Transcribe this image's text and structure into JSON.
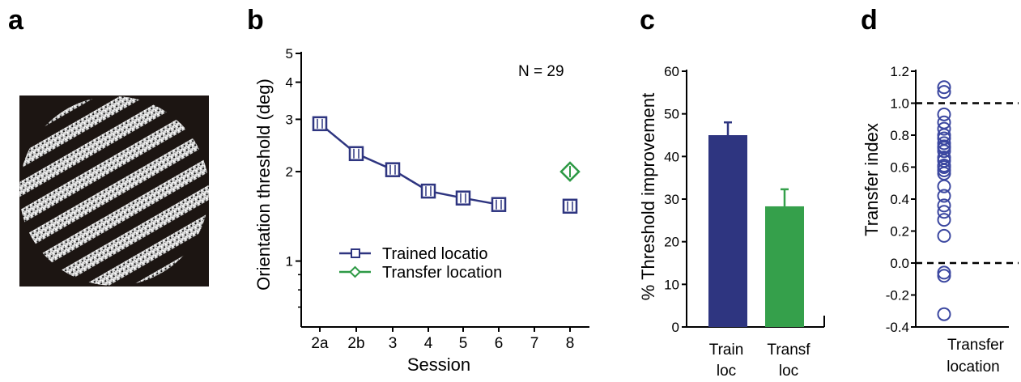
{
  "panels": {
    "a": "a",
    "b": "b",
    "c": "c",
    "d": "d"
  },
  "colors": {
    "trained": "#2e3580",
    "transfer": "#2e9a46",
    "bar_train": "#2e3580",
    "bar_transfer": "#35a04b",
    "points_d": "#3b47a0"
  },
  "stimulus": {
    "description_icon": "grating-stimulus-icon",
    "orientation_deg": 30,
    "stripe_count": 9
  },
  "chart_data": [
    {
      "panel": "b",
      "type": "line",
      "ylabel": "Orientation threshold (deg)",
      "xlabel": "Session",
      "yscale": "log",
      "ylim": [
        0.6,
        5
      ],
      "yticks": [
        "1",
        "2",
        "3",
        "4",
        "5"
      ],
      "yticks_values": [
        1,
        2,
        3,
        4,
        5
      ],
      "categories": [
        "2a",
        "2b",
        "3",
        "4",
        "5",
        "6",
        "7",
        "8"
      ],
      "annotation": "N = 29",
      "series": [
        {
          "name": "Trained locatio",
          "marker": "square",
          "connected": true,
          "points": [
            {
              "x": "2a",
              "y": 2.9
            },
            {
              "x": "2b",
              "y": 2.3
            },
            {
              "x": "3",
              "y": 2.03
            },
            {
              "x": "4",
              "y": 1.72
            },
            {
              "x": "5",
              "y": 1.63
            },
            {
              "x": "6",
              "y": 1.55
            }
          ]
        },
        {
          "name": "Trained locatio",
          "marker": "square",
          "connected": false,
          "points": [
            {
              "x": "8",
              "y": 1.53
            }
          ]
        },
        {
          "name": "Transfer location",
          "marker": "diamond",
          "connected": false,
          "points": [
            {
              "x": "8",
              "y": 2.0
            }
          ]
        }
      ],
      "legend": [
        "Trained locatio",
        "Transfer location"
      ]
    },
    {
      "panel": "c",
      "type": "bar",
      "ylabel": "% Threshold improvement",
      "ylim": [
        0,
        60
      ],
      "yticks": [
        "0",
        "10",
        "20",
        "30",
        "40",
        "50",
        "60"
      ],
      "categories": [
        [
          "Train",
          "loc"
        ],
        [
          "Transf",
          "loc"
        ]
      ],
      "values": [
        45,
        28.3
      ],
      "errors": [
        3,
        4
      ]
    },
    {
      "panel": "d",
      "type": "scatter",
      "ylabel": "Transfer index",
      "ylim": [
        -0.4,
        1.2
      ],
      "yticks": [
        "1.2",
        "1.0",
        "0.8",
        "0.6",
        "0.4",
        "0.2",
        "0.0",
        "-0.2",
        "-0.4"
      ],
      "yticks_values": [
        1.2,
        1.0,
        0.8,
        0.6,
        0.4,
        0.2,
        0.0,
        -0.2,
        -0.4
      ],
      "reference_lines": [
        1.0,
        0.0
      ],
      "category": [
        "Transfer",
        "location"
      ],
      "values": [
        1.1,
        1.07,
        0.93,
        0.88,
        0.84,
        0.8,
        0.78,
        0.75,
        0.73,
        0.72,
        0.7,
        0.66,
        0.64,
        0.61,
        0.6,
        0.58,
        0.56,
        0.48,
        0.42,
        0.36,
        0.32,
        0.27,
        0.17,
        -0.06,
        -0.08,
        -0.32
      ]
    }
  ]
}
